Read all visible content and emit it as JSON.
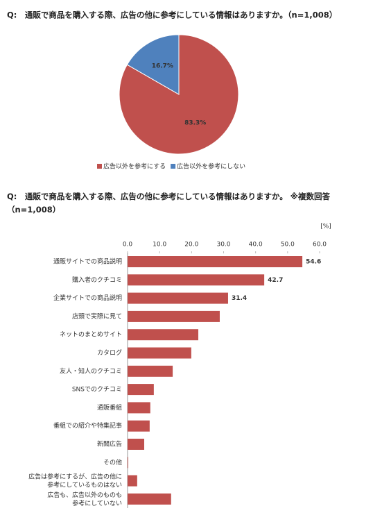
{
  "chart_data": [
    {
      "type": "pie",
      "title": "Q:　通販で商品を購入する際、広告の他に参考にしている情報はありますか。（n=1,008）",
      "categories": [
        "広告以外を参考にする",
        "広告以外を参考にしない"
      ],
      "values": [
        83.3,
        16.7
      ],
      "value_labels": [
        "83.3%",
        "16.7%"
      ],
      "colors": [
        "#c0504d",
        "#4f81bd"
      ],
      "legend": "bottom"
    },
    {
      "type": "hbar",
      "title": "Q:　通販で商品を購入する際、広告の他に参考にしている情報はありますか。 ※複数回答（n=1,008）",
      "unit": "[%]",
      "categories": [
        "通販サイトでの商品説明",
        "購入者のクチコミ",
        "企業サイトでの商品説明",
        "店頭で実際に見て",
        "ネットのまとめサイト",
        "カタログ",
        "友人・知人のクチコミ",
        "SNSでのクチコミ",
        "通販番組",
        "番組での紹介や特集記事",
        "新聞広告",
        "その他",
        "広告は参考にするが、広告の他に\n参考にしているものはない",
        "広告も、広告以外のものも\n参考にしていない"
      ],
      "values": [
        54.6,
        42.7,
        31.4,
        28.8,
        22.1,
        19.9,
        14.1,
        8.2,
        7.1,
        6.9,
        5.2,
        0.2,
        3.0,
        13.6
      ],
      "value_labels": [
        "54.6",
        "42.7",
        "31.4",
        null,
        null,
        null,
        null,
        null,
        null,
        null,
        null,
        null,
        null,
        null
      ],
      "color": "#c0504d",
      "xlim": [
        0,
        60
      ],
      "xticks": [
        {
          "value": 0,
          "label": "0.0"
        },
        {
          "value": 10,
          "label": "10.0"
        },
        {
          "value": 20,
          "label": "20.0"
        },
        {
          "value": 30,
          "label": "30.0"
        },
        {
          "value": 40,
          "label": "40.0"
        },
        {
          "value": 50,
          "label": "50.0"
        },
        {
          "value": 60,
          "label": "60.0"
        }
      ]
    }
  ]
}
